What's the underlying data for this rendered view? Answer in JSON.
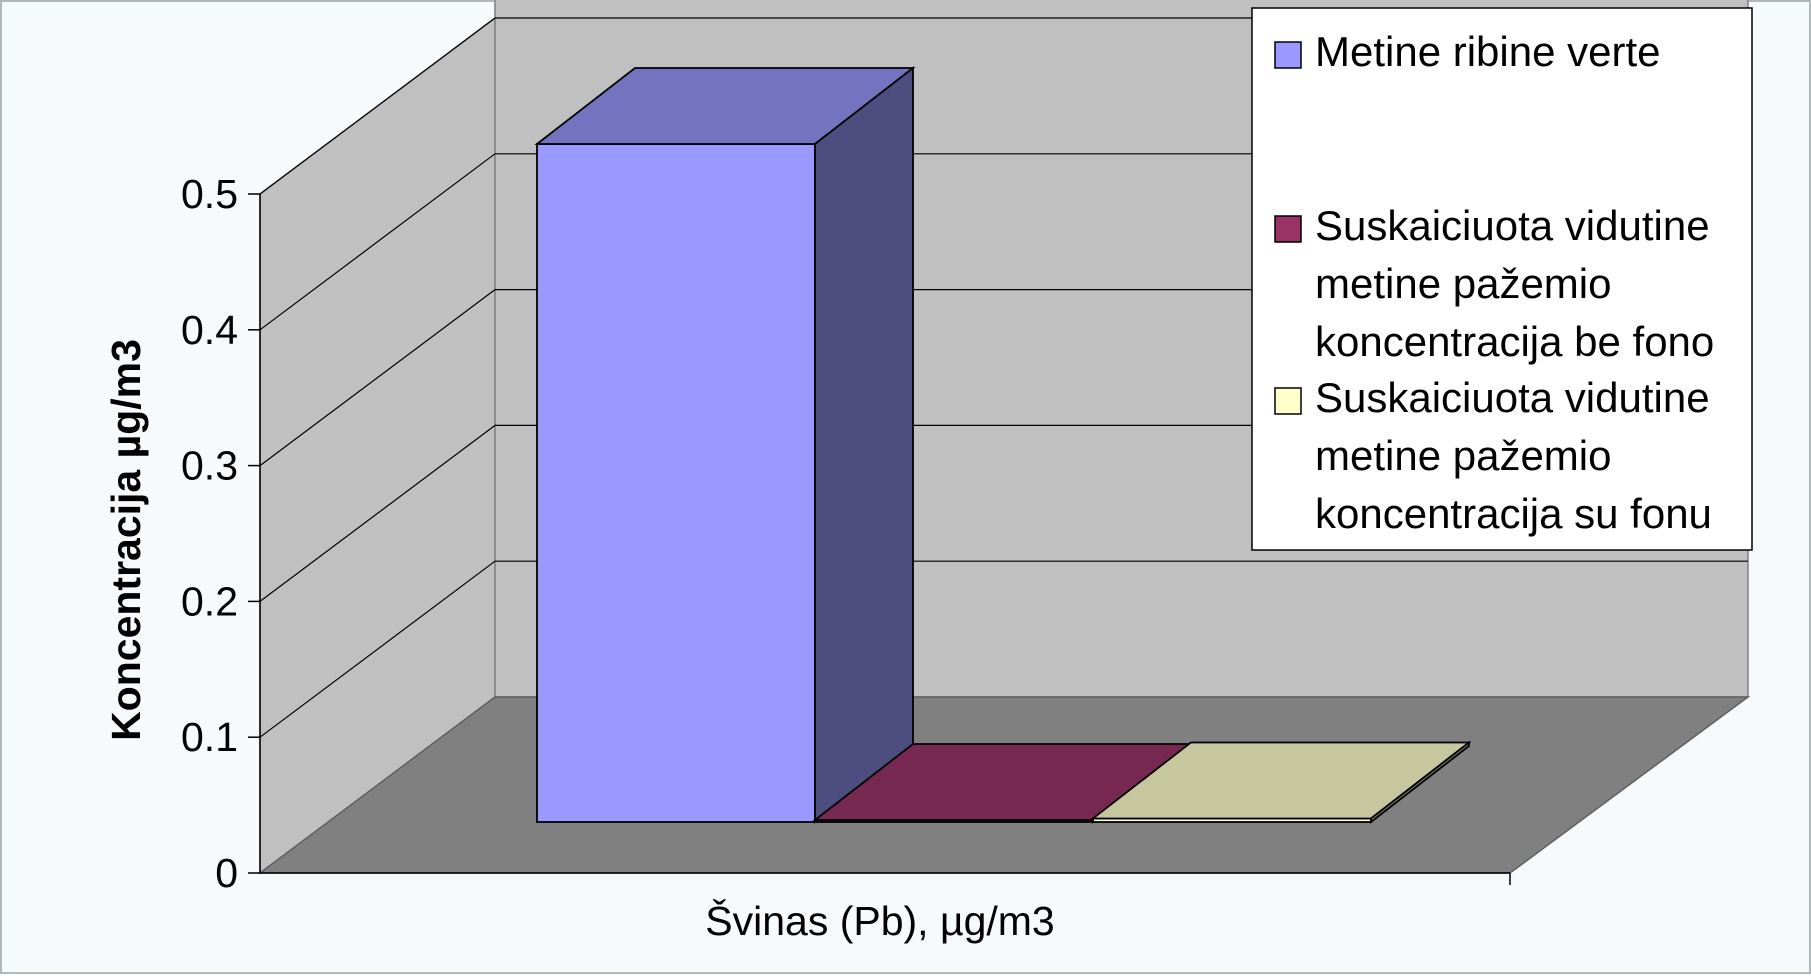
{
  "chart_data": {
    "type": "bar",
    "style": "3d-column",
    "categories": [
      "Švinas (Pb), µg/m3"
    ],
    "series": [
      {
        "name": "Metine ribine verte",
        "values": [
          0.5
        ],
        "color": "#9999FF"
      },
      {
        "name": "Suskaiciuota vidutine metine pažemio koncentracija be fono",
        "values": [
          0.0013
        ],
        "color": "#993366"
      },
      {
        "name": "Suskaiciuota vidutine metine pažemio koncentracija su fonu",
        "values": [
          0.0026
        ],
        "color": "#FFFFCC"
      }
    ],
    "xlabel": "Švinas (Pb), µg/m3",
    "ylabel": "Koncentracija µg/m3",
    "ylim": [
      0,
      0.5
    ],
    "yticks": [
      "0",
      "0.1",
      "0.2",
      "0.3",
      "0.4",
      "0.5"
    ],
    "grid": true,
    "legend_position": "top-right",
    "colors": {
      "frame_bg": "#F7FAFA",
      "wall": "#C0C0C0",
      "floor": "#808080"
    }
  }
}
